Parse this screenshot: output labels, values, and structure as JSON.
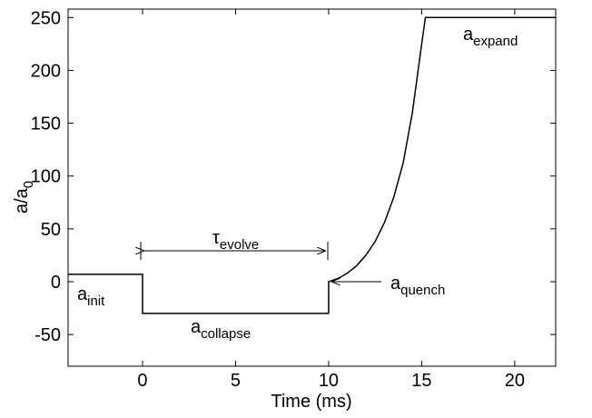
{
  "chart_data": {
    "type": "line",
    "x_label": "Time  (ms)",
    "y_label": {
      "text": "a/a",
      "sub": "0"
    },
    "xlim": [
      -4,
      22.2
    ],
    "ylim": [
      -80,
      258
    ],
    "xticks": [
      0,
      5,
      10,
      15,
      20
    ],
    "yticks": [
      -50,
      0,
      50,
      100,
      150,
      200,
      250
    ],
    "grid": false,
    "series": [
      {
        "color": "#000000",
        "x": [
          -4,
          0,
          0,
          10,
          10,
          10.5,
          11,
          11.5,
          12,
          12.5,
          13,
          13.5,
          14,
          14.5,
          15,
          15.2,
          22.2
        ],
        "values": [
          7,
          7,
          -30,
          -30,
          0,
          3,
          8,
          15,
          25,
          38,
          56,
          80,
          112,
          160,
          225,
          250,
          250
        ]
      }
    ],
    "annotations": [
      {
        "text": "a",
        "sub": "init"
      },
      {
        "text": "a",
        "sub": "collapse"
      },
      {
        "text": "a",
        "sub": "quench"
      },
      {
        "text": "a",
        "sub": "expand"
      },
      {
        "text": "τ",
        "sub": "evolve"
      }
    ]
  }
}
